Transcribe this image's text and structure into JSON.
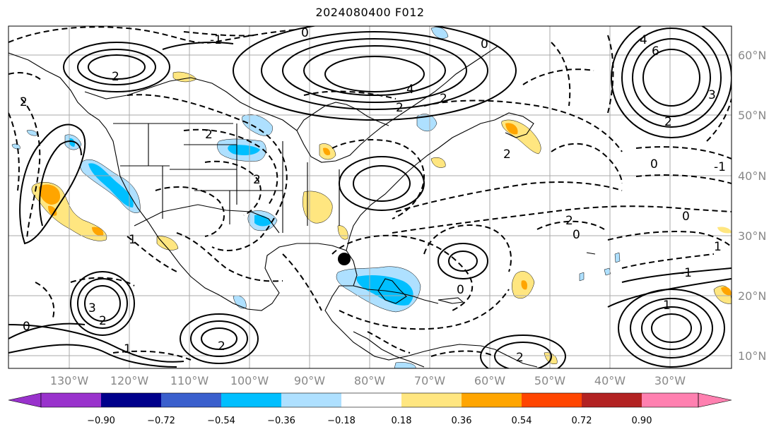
{
  "title": "2024080400 F012",
  "map": {
    "lon_labels": [
      "130°W",
      "120°W",
      "110°W",
      "100°W",
      "90°W",
      "80°W",
      "70°W",
      "60°W",
      "50°W",
      "40°W",
      "30°W"
    ],
    "lat_labels": [
      "60°N",
      "50°N",
      "40°N",
      "30°N",
      "20°N",
      "10°N"
    ],
    "contour_labels": [
      "-1",
      "0",
      "2",
      "2",
      "4",
      "2",
      "2",
      "0",
      "6",
      "4",
      "3",
      "2",
      "0",
      "-1",
      "2",
      "0",
      "0",
      "2",
      "1",
      "-1",
      "2",
      "0",
      "3",
      "2",
      "2",
      "1",
      "1",
      "0",
      "2",
      "2",
      "1"
    ],
    "storm_marker": "black-circle"
  },
  "colorbar": {
    "ticks": [
      "−0.90",
      "−0.72",
      "−0.54",
      "−0.36",
      "−0.18",
      "0.18",
      "0.36",
      "0.54",
      "0.72",
      "0.90"
    ],
    "colors": [
      "#9932cc",
      "#00008b",
      "#3a5fcd",
      "#00bfff",
      "#aee0ff",
      "#ffffff",
      "#ffe680",
      "#ffa500",
      "#ff4500",
      "#b22222",
      "#ff80b0"
    ],
    "extend_low_color": "#9932cc",
    "extend_high_color": "#ff80b0"
  }
}
